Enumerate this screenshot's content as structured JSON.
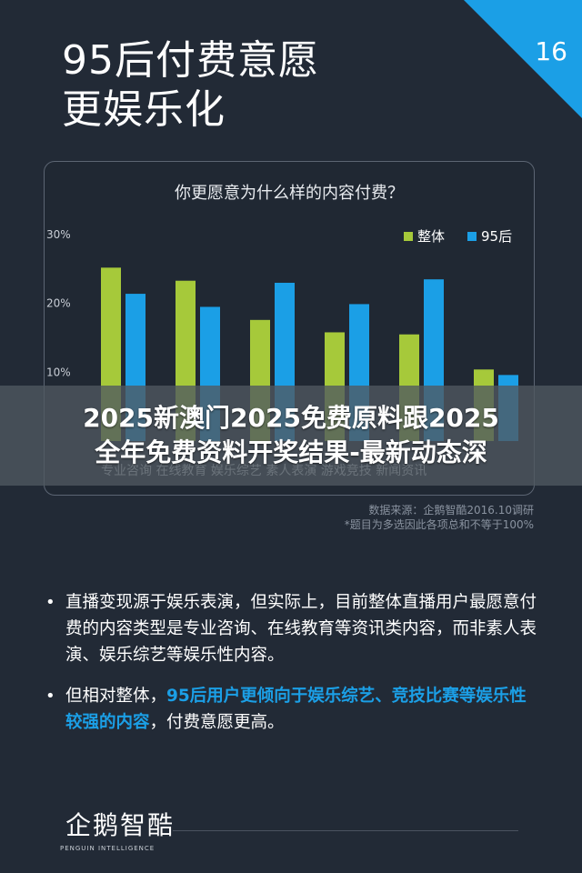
{
  "title": {
    "line1": "95后付费意愿",
    "line2": "更娱乐化"
  },
  "page_number": "16",
  "colors": {
    "accent_blue": "#1b9fe6",
    "green": "#a6c93a",
    "background": "#222a36"
  },
  "chart_data": {
    "type": "bar",
    "title": "你更愿意为什么样的内容付费？",
    "categories": [
      "",
      "",
      "",
      "",
      "",
      ""
    ],
    "categories_visible": [
      "专业咨询",
      "在线教育",
      "",
      "素人表演",
      "",
      ""
    ],
    "category_labels_line": "专业咨询 在线教育 娱乐综艺 素人表演 游戏竞技 新闻资讯",
    "series": [
      {
        "name": "整体",
        "color": "#a6c93a",
        "values": [
          25.2,
          23.3,
          17.6,
          15.8,
          15.5,
          10.4
        ]
      },
      {
        "name": "95后",
        "color": "#1b9fe6",
        "values": [
          21.4,
          19.5,
          23.0,
          19.9,
          23.5,
          9.6
        ]
      }
    ],
    "yticks": [
      "30%",
      "20%",
      "10%"
    ],
    "yticks_values": [
      30,
      20,
      10
    ],
    "ylim": [
      0,
      30
    ],
    "legend_position": "top-right",
    "grid": false
  },
  "banner": {
    "line1": "2025新澳门2025免费原料跟2025",
    "line2": "全年免费资料开奖结果-最新动态深"
  },
  "source_note": {
    "line1": "数据来源：企鹅智酷2016.10调研",
    "line2": "*题目为多选因此各项总和不等于100%"
  },
  "bullets": [
    {
      "parts": [
        {
          "text": "直播变现源于娱乐表演，但实际上，目前整体直播用户最愿意付费的内容类型是专业咨询、在线教育等资讯类内容，而非素人表演、娱乐综艺等娱乐性内容。",
          "highlight": false
        }
      ]
    },
    {
      "parts": [
        {
          "text": "但相对整体，",
          "highlight": false
        },
        {
          "text": "95后用户更倾向于娱乐综艺、竞技比赛等娱乐性较强的内容",
          "highlight": true
        },
        {
          "text": "，付费意愿更高。",
          "highlight": false
        }
      ]
    }
  ],
  "footer": {
    "logo_cn": "企鹅智酷",
    "logo_en": "PENGUIN INTELLIGENCE"
  }
}
